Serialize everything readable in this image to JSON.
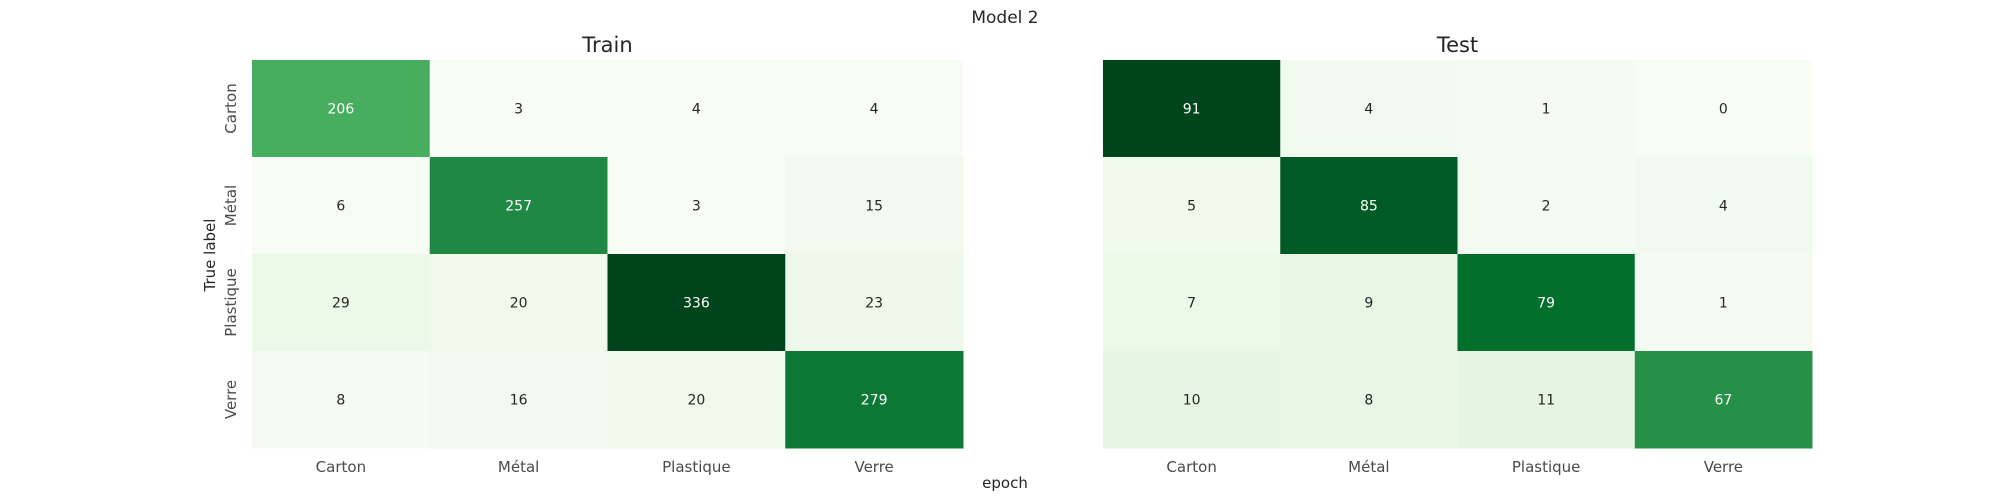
{
  "chart_data": {
    "type": "heatmap",
    "suptitle": "Model 2",
    "xlabel": "epoch",
    "ylabel": "True label",
    "categories": [
      "Carton",
      "Métal",
      "Plastique",
      "Verre"
    ],
    "colormap": "Greens",
    "panels": [
      {
        "title": "Train",
        "matrix": [
          [
            206,
            3,
            4,
            4
          ],
          [
            6,
            257,
            3,
            15
          ],
          [
            29,
            20,
            336,
            23
          ],
          [
            8,
            16,
            20,
            279
          ]
        ]
      },
      {
        "title": "Test",
        "matrix": [
          [
            91,
            4,
            1,
            0
          ],
          [
            5,
            85,
            2,
            4
          ],
          [
            7,
            9,
            79,
            1
          ],
          [
            10,
            8,
            11,
            67
          ]
        ]
      }
    ]
  }
}
